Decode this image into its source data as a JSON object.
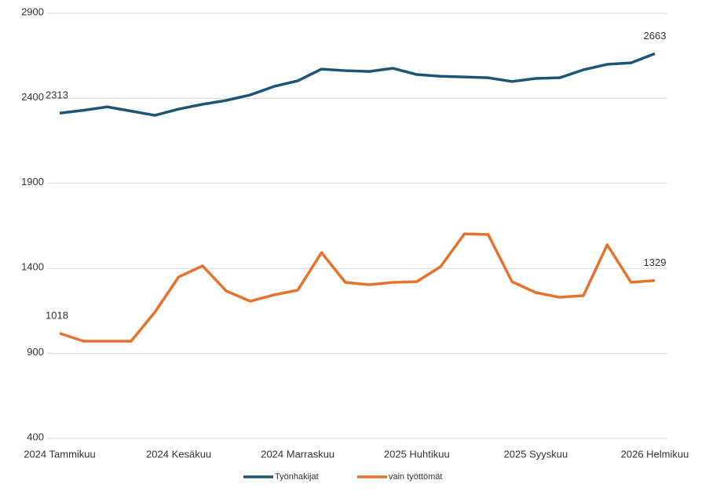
{
  "chart_data": {
    "type": "line",
    "categories": [
      "2024 Tammikuu",
      null,
      null,
      null,
      null,
      "2024 Kesäkuu",
      null,
      null,
      null,
      null,
      "2024 Marraskuu",
      null,
      null,
      null,
      null,
      "2025 Huhtikuu",
      null,
      null,
      null,
      null,
      "2025 Syyskuu",
      null,
      null,
      null,
      null,
      "2026 Helmikuu"
    ],
    "series": [
      {
        "name": "Työnhakijat",
        "color": "#1b5577",
        "label_points": [
          0,
          25
        ],
        "values": [
          2313,
          2330,
          2350,
          2325,
          2300,
          2337,
          2365,
          2388,
          2420,
          2470,
          2503,
          2572,
          2563,
          2558,
          2577,
          2540,
          2530,
          2526,
          2521,
          2499,
          2517,
          2521,
          2568,
          2600,
          2609,
          2663
        ]
      },
      {
        "name": "vain työttömät",
        "color": "#e8712b",
        "label_points": [
          0,
          25
        ],
        "values": [
          1018,
          972,
          972,
          972,
          1143,
          1350,
          1415,
          1267,
          1207,
          1244,
          1272,
          1493,
          1318,
          1304,
          1318,
          1322,
          1410,
          1603,
          1599,
          1322,
          1258,
          1230,
          1240,
          1539,
          1318,
          1329
        ]
      }
    ],
    "ylim": [
      400,
      2900
    ],
    "yticks": [
      400,
      900,
      1400,
      1900,
      2400,
      2900
    ],
    "grid": true,
    "legend": "bottom"
  }
}
